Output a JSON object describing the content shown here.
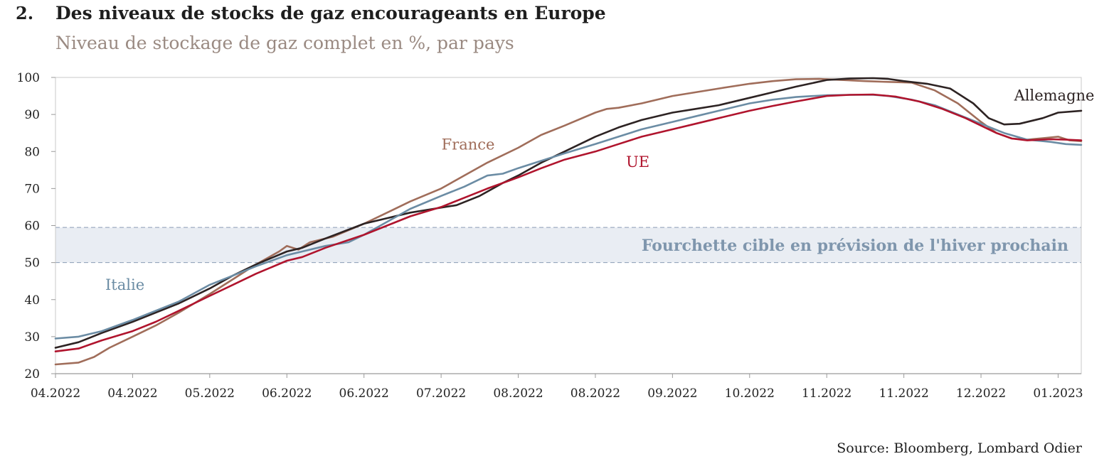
{
  "header": {
    "number": "2.",
    "title": "Des niveaux de stocks de gaz encourageants en Europe",
    "subtitle": "Niveau de stockage de gaz complet en %, par pays"
  },
  "source": "Source: Bloomberg, Lombard Odier",
  "chart_data": {
    "type": "line",
    "title": "Des niveaux de stocks de gaz encourageants en Europe",
    "subtitle": "Niveau de stockage de gaz complet en %, par pays",
    "ylim": [
      20,
      100
    ],
    "yticks": [
      "20",
      "30",
      "40",
      "50",
      "60",
      "70",
      "80",
      "90",
      "100"
    ],
    "xlim": [
      0,
      13.3
    ],
    "xticks": [
      {
        "x": 0,
        "label": "04.2022"
      },
      {
        "x": 1,
        "label": "04.2022"
      },
      {
        "x": 2,
        "label": "05.2022"
      },
      {
        "x": 3,
        "label": "06.2022"
      },
      {
        "x": 4,
        "label": "06.2022"
      },
      {
        "x": 5,
        "label": "07.2022"
      },
      {
        "x": 6,
        "label": "08.2022"
      },
      {
        "x": 7,
        "label": "08.2022"
      },
      {
        "x": 8,
        "label": "09.2022"
      },
      {
        "x": 9,
        "label": "10.2022"
      },
      {
        "x": 10,
        "label": "11.2022"
      },
      {
        "x": 11,
        "label": "11.2022"
      },
      {
        "x": 12,
        "label": "12.2022"
      },
      {
        "x": 13,
        "label": "01.2023"
      }
    ],
    "band": {
      "from": 50,
      "to": 59.5,
      "label": "Fourchette cible en prévision de l'hiver prochain",
      "color": "#e9edf3",
      "line_color": "#8a9db5"
    },
    "grid": false,
    "series": [
      {
        "name": "France",
        "color": "#a06d5a",
        "label_at": {
          "x": 5.35,
          "y": 80.5
        },
        "points": [
          [
            0,
            22.5
          ],
          [
            0.3,
            23
          ],
          [
            0.5,
            24.5
          ],
          [
            0.7,
            27
          ],
          [
            1,
            30
          ],
          [
            1.3,
            33
          ],
          [
            1.6,
            36.5
          ],
          [
            2,
            41.5
          ],
          [
            2.3,
            45.5
          ],
          [
            2.6,
            49.5
          ],
          [
            2.9,
            53
          ],
          [
            3,
            54.5
          ],
          [
            3.15,
            53.5
          ],
          [
            3.3,
            55.5
          ],
          [
            3.6,
            57
          ],
          [
            4,
            60.5
          ],
          [
            4.3,
            63.5
          ],
          [
            4.6,
            66.5
          ],
          [
            5,
            70
          ],
          [
            5.3,
            73.5
          ],
          [
            5.6,
            77
          ],
          [
            6,
            81
          ],
          [
            6.3,
            84.5
          ],
          [
            6.6,
            87
          ],
          [
            7,
            90.5
          ],
          [
            7.15,
            91.5
          ],
          [
            7.3,
            91.8
          ],
          [
            7.6,
            93
          ],
          [
            8,
            95
          ],
          [
            8.3,
            96
          ],
          [
            8.6,
            97
          ],
          [
            9,
            98.3
          ],
          [
            9.3,
            99
          ],
          [
            9.6,
            99.5
          ],
          [
            9.9,
            99.6
          ],
          [
            10.2,
            99.3
          ],
          [
            10.5,
            99
          ],
          [
            10.8,
            98.8
          ],
          [
            11.1,
            98.6
          ],
          [
            11.4,
            96.5
          ],
          [
            11.7,
            93
          ],
          [
            12,
            88
          ],
          [
            12.2,
            85
          ],
          [
            12.4,
            83.5
          ],
          [
            12.6,
            83.2
          ],
          [
            12.8,
            83.6
          ],
          [
            13,
            84
          ],
          [
            13.15,
            83
          ],
          [
            13.3,
            82.8
          ]
        ]
      },
      {
        "name": "Allemagne",
        "color": "#2d2323",
        "label_at": {
          "x": 12.95,
          "y": 93.8
        },
        "points": [
          [
            0,
            27
          ],
          [
            0.3,
            28.5
          ],
          [
            0.6,
            31
          ],
          [
            1,
            34
          ],
          [
            1.3,
            36.5
          ],
          [
            1.6,
            39
          ],
          [
            2,
            43
          ],
          [
            2.3,
            46.5
          ],
          [
            2.6,
            49.5
          ],
          [
            3,
            53
          ],
          [
            3.2,
            54
          ],
          [
            3.5,
            56.5
          ],
          [
            4,
            60.5
          ],
          [
            4.3,
            62
          ],
          [
            4.6,
            63.5
          ],
          [
            4.9,
            64.5
          ],
          [
            5.2,
            65.5
          ],
          [
            5.5,
            68
          ],
          [
            5.8,
            71.5
          ],
          [
            6,
            73.5
          ],
          [
            6.3,
            77
          ],
          [
            6.6,
            80
          ],
          [
            7,
            84
          ],
          [
            7.3,
            86.5
          ],
          [
            7.6,
            88.5
          ],
          [
            8,
            90.5
          ],
          [
            8.3,
            91.5
          ],
          [
            8.6,
            92.5
          ],
          [
            9,
            94.5
          ],
          [
            9.3,
            96
          ],
          [
            9.6,
            97.5
          ],
          [
            10,
            99.3
          ],
          [
            10.3,
            99.7
          ],
          [
            10.6,
            99.8
          ],
          [
            10.8,
            99.6
          ],
          [
            11,
            99
          ],
          [
            11.3,
            98.3
          ],
          [
            11.6,
            97
          ],
          [
            11.9,
            93
          ],
          [
            12.1,
            89
          ],
          [
            12.3,
            87.3
          ],
          [
            12.5,
            87.5
          ],
          [
            12.8,
            89
          ],
          [
            13,
            90.5
          ],
          [
            13.3,
            91
          ]
        ]
      },
      {
        "name": "Italie",
        "color": "#6b8ca4",
        "label_at": {
          "x": 0.9,
          "y": 42.6
        },
        "points": [
          [
            0,
            29.5
          ],
          [
            0.3,
            30
          ],
          [
            0.6,
            31.5
          ],
          [
            1,
            34.5
          ],
          [
            1.3,
            37
          ],
          [
            1.6,
            39.5
          ],
          [
            2,
            44
          ],
          [
            2.3,
            46.5
          ],
          [
            2.6,
            49
          ],
          [
            3,
            52
          ],
          [
            3.2,
            53
          ],
          [
            3.5,
            54.5
          ],
          [
            3.8,
            55.5
          ],
          [
            4,
            57.5
          ],
          [
            4.3,
            61
          ],
          [
            4.6,
            64.5
          ],
          [
            5,
            68
          ],
          [
            5.3,
            70.5
          ],
          [
            5.6,
            73.5
          ],
          [
            5.8,
            74
          ],
          [
            6,
            75.5
          ],
          [
            6.3,
            77.5
          ],
          [
            6.6,
            79.5
          ],
          [
            7,
            82
          ],
          [
            7.3,
            84
          ],
          [
            7.6,
            86
          ],
          [
            8,
            88
          ],
          [
            8.3,
            89.5
          ],
          [
            8.6,
            91
          ],
          [
            9,
            93
          ],
          [
            9.3,
            94
          ],
          [
            9.6,
            94.7
          ],
          [
            10,
            95.2
          ],
          [
            10.3,
            95.3
          ],
          [
            10.6,
            95.3
          ],
          [
            10.8,
            95
          ],
          [
            11.1,
            94
          ],
          [
            11.4,
            92.5
          ],
          [
            11.7,
            90
          ],
          [
            12,
            87.5
          ],
          [
            12.3,
            85
          ],
          [
            12.6,
            83.2
          ],
          [
            12.9,
            82.6
          ],
          [
            13.1,
            82
          ],
          [
            13.3,
            81.8
          ]
        ]
      },
      {
        "name": "UE",
        "color": "#b0142d",
        "label_at": {
          "x": 7.55,
          "y": 75.8
        },
        "points": [
          [
            0,
            26
          ],
          [
            0.3,
            26.8
          ],
          [
            0.6,
            29
          ],
          [
            1,
            31.5
          ],
          [
            1.3,
            34
          ],
          [
            1.6,
            37
          ],
          [
            2,
            41
          ],
          [
            2.3,
            44
          ],
          [
            2.6,
            47
          ],
          [
            3,
            50.5
          ],
          [
            3.2,
            51.5
          ],
          [
            3.5,
            54
          ],
          [
            4,
            57.5
          ],
          [
            4.3,
            60
          ],
          [
            4.6,
            62.5
          ],
          [
            5,
            65
          ],
          [
            5.3,
            67.5
          ],
          [
            5.6,
            70
          ],
          [
            6,
            73
          ],
          [
            6.3,
            75.5
          ],
          [
            6.6,
            77.8
          ],
          [
            7,
            80
          ],
          [
            7.3,
            82
          ],
          [
            7.6,
            84
          ],
          [
            8,
            86
          ],
          [
            8.3,
            87.5
          ],
          [
            8.6,
            89
          ],
          [
            9,
            91
          ],
          [
            9.3,
            92.3
          ],
          [
            9.6,
            93.5
          ],
          [
            10,
            95
          ],
          [
            10.3,
            95.3
          ],
          [
            10.6,
            95.4
          ],
          [
            10.9,
            94.8
          ],
          [
            11.2,
            93.5
          ],
          [
            11.5,
            91.5
          ],
          [
            11.8,
            89
          ],
          [
            12,
            87
          ],
          [
            12.2,
            85
          ],
          [
            12.4,
            83.5
          ],
          [
            12.6,
            83
          ],
          [
            12.9,
            83.3
          ],
          [
            13.1,
            83.2
          ],
          [
            13.3,
            83
          ]
        ]
      }
    ]
  }
}
